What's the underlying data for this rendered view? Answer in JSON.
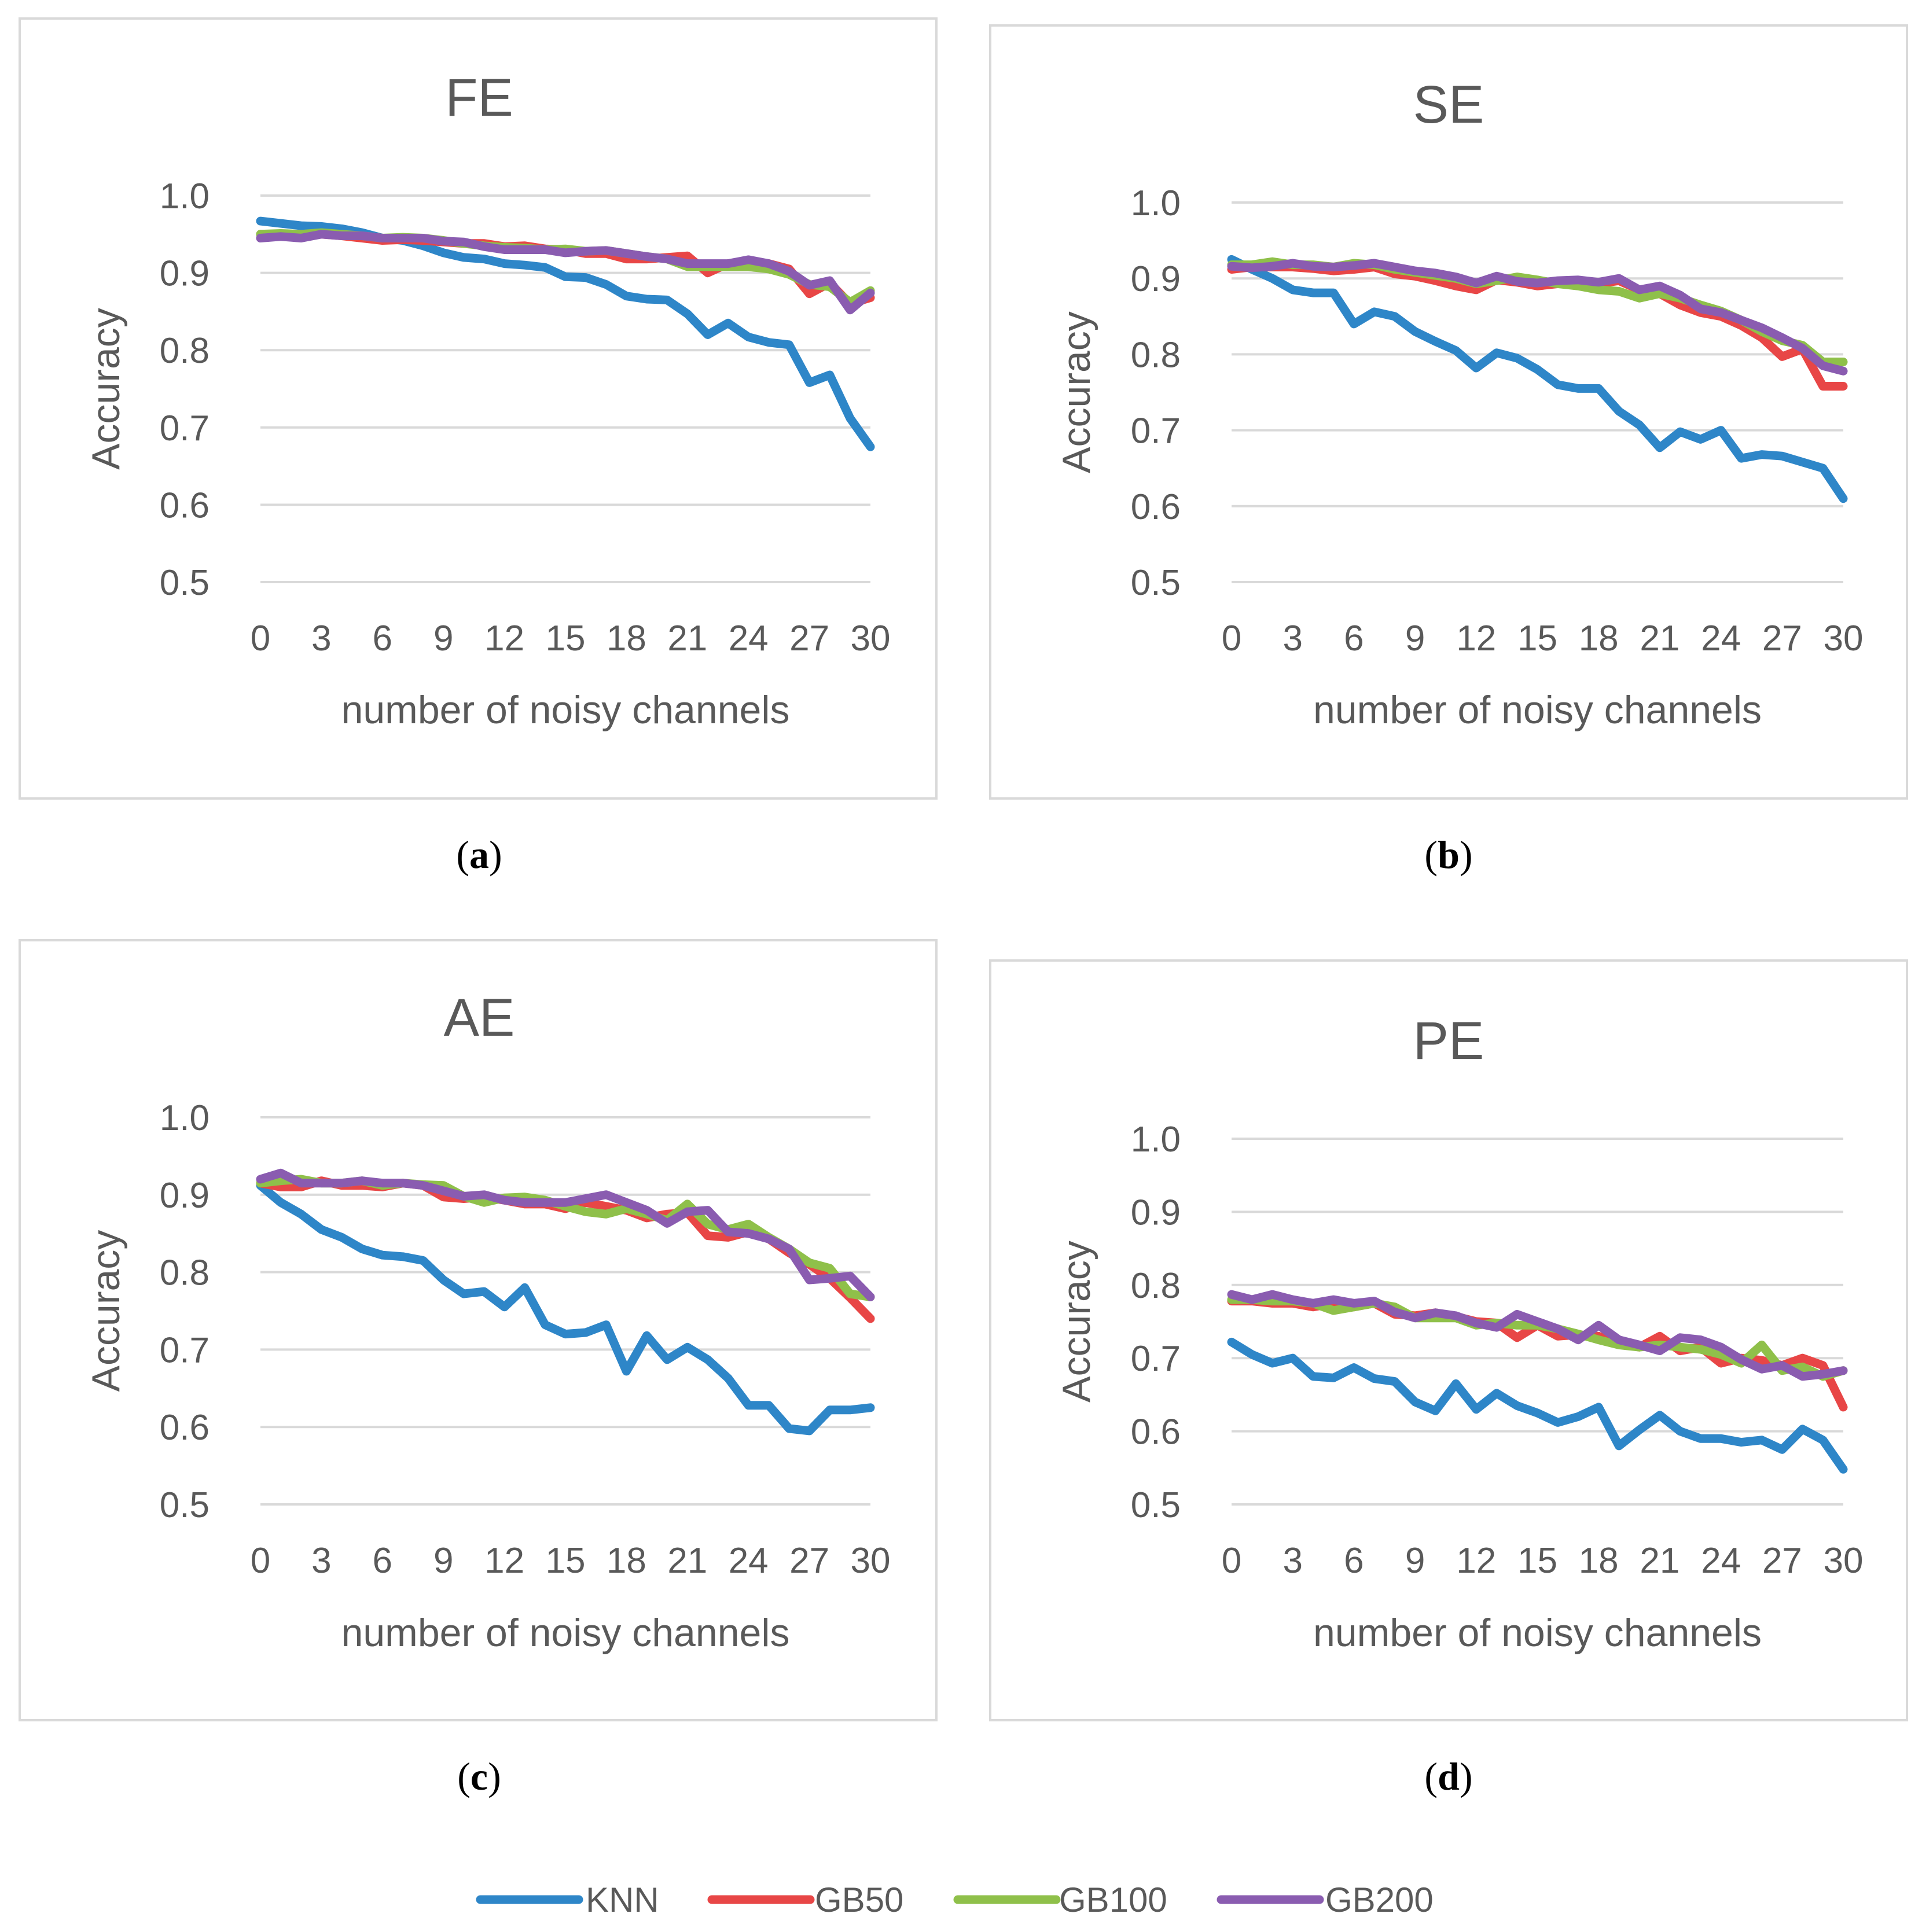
{
  "colors": {
    "KNN": "#2e86c8",
    "GB50": "#e84646",
    "GB100": "#8fc04a",
    "GB200": "#8a5cb0"
  },
  "legend": [
    "KNN",
    "GB50",
    "GB100",
    "GB200"
  ],
  "chart_data": [
    {
      "type": "line",
      "title": "FE",
      "caption_letter": "a",
      "xlabel": "number of noisy channels",
      "ylabel": "Accuracy",
      "ylim": [
        0.5,
        1.0
      ],
      "xlim": [
        0,
        30
      ],
      "x_ticks": [
        "0",
        "3",
        "6",
        "9",
        "12",
        "15",
        "18",
        "21",
        "24",
        "27",
        "30"
      ],
      "y_ticks": [
        "0.5",
        "0.6",
        "0.7",
        "0.8",
        "0.9",
        "1.0"
      ],
      "x": [
        0,
        1,
        2,
        3,
        4,
        5,
        6,
        7,
        8,
        9,
        10,
        11,
        12,
        13,
        14,
        15,
        16,
        17,
        18,
        19,
        20,
        21,
        22,
        23,
        24,
        25,
        26,
        27,
        28,
        29,
        30
      ],
      "series": [
        {
          "name": "KNN",
          "values": [
            0.967,
            0.964,
            0.961,
            0.96,
            0.957,
            0.952,
            0.945,
            0.942,
            0.935,
            0.926,
            0.92,
            0.918,
            0.912,
            0.91,
            0.907,
            0.895,
            0.894,
            0.885,
            0.87,
            0.866,
            0.865,
            0.847,
            0.82,
            0.835,
            0.817,
            0.81,
            0.807,
            0.758,
            0.768,
            0.712,
            0.675
          ]
        },
        {
          "name": "GB50",
          "values": [
            0.95,
            0.95,
            0.948,
            0.95,
            0.948,
            0.945,
            0.942,
            0.943,
            0.942,
            0.94,
            0.938,
            0.938,
            0.934,
            0.935,
            0.931,
            0.93,
            0.925,
            0.925,
            0.918,
            0.918,
            0.92,
            0.922,
            0.9,
            0.912,
            0.915,
            0.912,
            0.905,
            0.873,
            0.887,
            0.86,
            0.868
          ]
        },
        {
          "name": "GB100",
          "values": [
            0.95,
            0.951,
            0.95,
            0.952,
            0.95,
            0.948,
            0.945,
            0.946,
            0.945,
            0.942,
            0.938,
            0.935,
            0.933,
            0.932,
            0.93,
            0.931,
            0.928,
            0.929,
            0.925,
            0.921,
            0.918,
            0.908,
            0.908,
            0.908,
            0.908,
            0.905,
            0.898,
            0.885,
            0.882,
            0.862,
            0.877
          ]
        },
        {
          "name": "GB200",
          "values": [
            0.945,
            0.947,
            0.945,
            0.95,
            0.948,
            0.948,
            0.945,
            0.945,
            0.945,
            0.941,
            0.94,
            0.934,
            0.93,
            0.93,
            0.93,
            0.926,
            0.928,
            0.929,
            0.925,
            0.921,
            0.918,
            0.912,
            0.912,
            0.912,
            0.917,
            0.912,
            0.902,
            0.884,
            0.89,
            0.852,
            0.874
          ]
        }
      ]
    },
    {
      "type": "line",
      "title": "SE",
      "caption_letter": "b",
      "xlabel": "number of noisy channels",
      "ylabel": "Accuracy",
      "ylim": [
        0.5,
        1.0
      ],
      "xlim": [
        0,
        30
      ],
      "x_ticks": [
        "0",
        "3",
        "6",
        "9",
        "12",
        "15",
        "18",
        "21",
        "24",
        "27",
        "30"
      ],
      "y_ticks": [
        "0.5",
        "0.6",
        "0.7",
        "0.8",
        "0.9",
        "1.0"
      ],
      "x": [
        0,
        1,
        2,
        3,
        4,
        5,
        6,
        7,
        8,
        9,
        10,
        11,
        12,
        13,
        14,
        15,
        16,
        17,
        18,
        19,
        20,
        21,
        22,
        23,
        24,
        25,
        26,
        27,
        28,
        29,
        30
      ],
      "series": [
        {
          "name": "KNN",
          "values": [
            0.925,
            0.912,
            0.9,
            0.885,
            0.881,
            0.881,
            0.84,
            0.856,
            0.85,
            0.83,
            0.817,
            0.805,
            0.782,
            0.802,
            0.795,
            0.78,
            0.76,
            0.755,
            0.755,
            0.725,
            0.707,
            0.677,
            0.698,
            0.688,
            0.7,
            0.663,
            0.668,
            0.666,
            0.658,
            0.65,
            0.61
          ]
        },
        {
          "name": "GB50",
          "values": [
            0.912,
            0.915,
            0.915,
            0.915,
            0.913,
            0.91,
            0.912,
            0.915,
            0.906,
            0.903,
            0.897,
            0.89,
            0.885,
            0.898,
            0.895,
            0.89,
            0.893,
            0.897,
            0.893,
            0.897,
            0.885,
            0.88,
            0.865,
            0.855,
            0.85,
            0.838,
            0.822,
            0.797,
            0.807,
            0.758,
            0.758
          ]
        },
        {
          "name": "GB100",
          "values": [
            0.918,
            0.918,
            0.922,
            0.918,
            0.918,
            0.915,
            0.92,
            0.918,
            0.912,
            0.908,
            0.904,
            0.9,
            0.893,
            0.897,
            0.902,
            0.898,
            0.893,
            0.89,
            0.885,
            0.883,
            0.874,
            0.88,
            0.874,
            0.865,
            0.857,
            0.845,
            0.83,
            0.818,
            0.812,
            0.79,
            0.79
          ]
        },
        {
          "name": "GB200",
          "values": [
            0.916,
            0.914,
            0.916,
            0.92,
            0.916,
            0.915,
            0.917,
            0.92,
            0.915,
            0.91,
            0.907,
            0.902,
            0.894,
            0.903,
            0.896,
            0.894,
            0.897,
            0.898,
            0.895,
            0.9,
            0.885,
            0.89,
            0.878,
            0.86,
            0.855,
            0.845,
            0.835,
            0.822,
            0.808,
            0.785,
            0.778
          ]
        }
      ]
    },
    {
      "type": "line",
      "title": "AE",
      "caption_letter": "c",
      "xlabel": "number of noisy channels",
      "ylabel": "Accuracy",
      "ylim": [
        0.5,
        1.0
      ],
      "xlim": [
        0,
        30
      ],
      "x_ticks": [
        "0",
        "3",
        "6",
        "9",
        "12",
        "15",
        "18",
        "21",
        "24",
        "27",
        "30"
      ],
      "y_ticks": [
        "0.5",
        "0.6",
        "0.7",
        "0.8",
        "0.9",
        "1.0"
      ],
      "x": [
        0,
        1,
        2,
        3,
        4,
        5,
        6,
        7,
        8,
        9,
        10,
        11,
        12,
        13,
        14,
        15,
        16,
        17,
        18,
        19,
        20,
        21,
        22,
        23,
        24,
        25,
        26,
        27,
        28,
        29,
        30
      ],
      "series": [
        {
          "name": "KNN",
          "values": [
            0.912,
            0.89,
            0.875,
            0.855,
            0.845,
            0.83,
            0.822,
            0.82,
            0.815,
            0.79,
            0.772,
            0.775,
            0.755,
            0.78,
            0.732,
            0.72,
            0.722,
            0.732,
            0.672,
            0.718,
            0.687,
            0.703,
            0.687,
            0.663,
            0.628,
            0.628,
            0.598,
            0.595,
            0.622,
            0.622,
            0.625
          ]
        },
        {
          "name": "GB50",
          "values": [
            0.915,
            0.91,
            0.91,
            0.918,
            0.912,
            0.912,
            0.91,
            0.915,
            0.912,
            0.897,
            0.895,
            0.897,
            0.893,
            0.888,
            0.888,
            0.882,
            0.89,
            0.885,
            0.88,
            0.87,
            0.875,
            0.877,
            0.847,
            0.845,
            0.852,
            0.843,
            0.825,
            0.81,
            0.792,
            0.767,
            0.74
          ]
        },
        {
          "name": "GB100",
          "values": [
            0.915,
            0.918,
            0.92,
            0.915,
            0.915,
            0.918,
            0.912,
            0.915,
            0.913,
            0.912,
            0.898,
            0.89,
            0.896,
            0.897,
            0.893,
            0.885,
            0.878,
            0.875,
            0.882,
            0.875,
            0.867,
            0.888,
            0.862,
            0.855,
            0.862,
            0.845,
            0.83,
            0.812,
            0.805,
            0.772,
            0.768
          ]
        },
        {
          "name": "GB200",
          "values": [
            0.92,
            0.928,
            0.915,
            0.915,
            0.915,
            0.918,
            0.915,
            0.915,
            0.912,
            0.905,
            0.898,
            0.9,
            0.893,
            0.89,
            0.89,
            0.89,
            0.895,
            0.9,
            0.89,
            0.88,
            0.863,
            0.878,
            0.88,
            0.852,
            0.85,
            0.843,
            0.83,
            0.79,
            0.792,
            0.795,
            0.768
          ]
        }
      ]
    },
    {
      "type": "line",
      "title": "PE",
      "caption_letter": "d",
      "xlabel": "number of noisy channels",
      "ylabel": "Accuracy",
      "ylim": [
        0.5,
        1.0
      ],
      "xlim": [
        0,
        30
      ],
      "x_ticks": [
        "0",
        "3",
        "6",
        "9",
        "12",
        "15",
        "18",
        "21",
        "24",
        "27",
        "30"
      ],
      "y_ticks": [
        "0.5",
        "0.6",
        "0.7",
        "0.8",
        "0.9",
        "1.0"
      ],
      "x": [
        0,
        1,
        2,
        3,
        4,
        5,
        6,
        7,
        8,
        9,
        10,
        11,
        12,
        13,
        14,
        15,
        16,
        17,
        18,
        19,
        20,
        21,
        22,
        23,
        24,
        25,
        26,
        27,
        28,
        29,
        30
      ],
      "series": [
        {
          "name": "KNN",
          "values": [
            0.722,
            0.705,
            0.693,
            0.7,
            0.675,
            0.673,
            0.687,
            0.672,
            0.668,
            0.64,
            0.628,
            0.665,
            0.63,
            0.652,
            0.635,
            0.625,
            0.612,
            0.62,
            0.633,
            0.58,
            0.602,
            0.622,
            0.6,
            0.59,
            0.59,
            0.585,
            0.588,
            0.575,
            0.603,
            0.588,
            0.548
          ]
        },
        {
          "name": "GB50",
          "values": [
            0.778,
            0.778,
            0.775,
            0.775,
            0.77,
            0.775,
            0.77,
            0.775,
            0.76,
            0.758,
            0.762,
            0.757,
            0.75,
            0.748,
            0.728,
            0.745,
            0.73,
            0.732,
            0.73,
            0.72,
            0.715,
            0.73,
            0.71,
            0.715,
            0.693,
            0.7,
            0.697,
            0.69,
            0.7,
            0.69,
            0.633
          ]
        },
        {
          "name": "GB100",
          "values": [
            0.78,
            0.78,
            0.778,
            0.778,
            0.775,
            0.765,
            0.77,
            0.775,
            0.77,
            0.755,
            0.755,
            0.755,
            0.745,
            0.748,
            0.745,
            0.745,
            0.74,
            0.733,
            0.725,
            0.718,
            0.715,
            0.718,
            0.715,
            0.712,
            0.705,
            0.693,
            0.718,
            0.683,
            0.688,
            0.675,
            0.683
          ]
        },
        {
          "name": "GB200",
          "values": [
            0.787,
            0.78,
            0.787,
            0.78,
            0.775,
            0.78,
            0.775,
            0.778,
            0.763,
            0.755,
            0.762,
            0.758,
            0.748,
            0.742,
            0.76,
            0.75,
            0.74,
            0.725,
            0.745,
            0.725,
            0.718,
            0.71,
            0.728,
            0.725,
            0.715,
            0.698,
            0.685,
            0.69,
            0.675,
            0.678,
            0.683
          ]
        }
      ]
    }
  ]
}
